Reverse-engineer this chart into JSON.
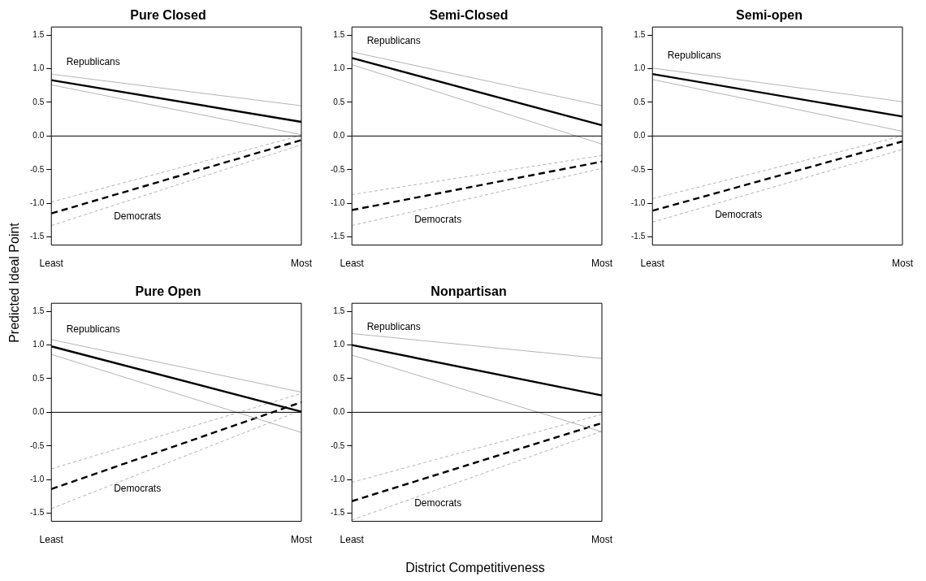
{
  "chart_data": [
    {
      "type": "line",
      "title": "Pure Closed",
      "ylabel": "Predicted Ideal Point",
      "categories": [
        "Least",
        "Most"
      ],
      "ylim": [
        -1.62,
        1.62
      ],
      "yticks": [
        -1.5,
        {
          "value": -1,
          "label": "-1.0"
        },
        -0.5,
        {
          "value": 0,
          "label": "0.0"
        },
        0.5,
        {
          "value": 1,
          "label": "1.0"
        },
        1.5
      ],
      "legend": false,
      "grid": false,
      "ref_lines": [
        {
          "axis": "y",
          "value": 0,
          "color": "#000000"
        }
      ],
      "series": [
        {
          "color": "#b4b4b4",
          "line_style": "solid",
          "values": [
            0.92,
            0.45
          ]
        },
        {
          "color": "#b4b4b4",
          "line_style": "solid",
          "values": [
            0.76,
            0.02
          ]
        },
        {
          "name": "Republicans",
          "color": "#000000",
          "line_style": "solid",
          "values": [
            0.83,
            0.21
          ]
        },
        {
          "color": "#b4b4b4",
          "line_style": "dashed",
          "values": [
            -0.98,
            0.01
          ]
        },
        {
          "color": "#b4b4b4",
          "line_style": "dashed",
          "values": [
            -1.33,
            -0.13
          ]
        },
        {
          "name": "Democrats",
          "color": "#000000",
          "line_style": "dashed",
          "values": [
            -1.15,
            -0.06
          ]
        }
      ]
    },
    {
      "type": "line",
      "title": "Semi-Closed",
      "categories": [
        "Least",
        "Most"
      ],
      "ylim": [
        -1.62,
        1.62
      ],
      "yticks": [
        -1.5,
        {
          "value": -1,
          "label": "-1.0"
        },
        -0.5,
        {
          "value": 0,
          "label": "0.0"
        },
        0.5,
        {
          "value": 1,
          "label": "1.0"
        },
        1.5
      ],
      "legend": false,
      "grid": false,
      "ref_lines": [
        {
          "axis": "y",
          "value": 0,
          "color": "#000000"
        }
      ],
      "series": [
        {
          "color": "#b4b4b4",
          "line_style": "solid",
          "values": [
            1.25,
            0.45
          ]
        },
        {
          "color": "#b4b4b4",
          "line_style": "solid",
          "values": [
            1.06,
            -0.12
          ]
        },
        {
          "name": "Republicans",
          "color": "#000000",
          "line_style": "solid",
          "values": [
            1.16,
            0.16
          ]
        },
        {
          "color": "#b4b4b4",
          "line_style": "dashed",
          "values": [
            -0.87,
            -0.29
          ]
        },
        {
          "color": "#b4b4b4",
          "line_style": "dashed",
          "values": [
            -1.33,
            -0.48
          ]
        },
        {
          "name": "Democrats",
          "color": "#000000",
          "line_style": "dashed",
          "values": [
            -1.1,
            -0.38
          ]
        }
      ]
    },
    {
      "type": "line",
      "title": "Semi-open",
      "categories": [
        "Least",
        "Most"
      ],
      "ylim": [
        -1.62,
        1.62
      ],
      "yticks": [
        -1.5,
        {
          "value": -1,
          "label": "-1.0"
        },
        -0.5,
        {
          "value": 0,
          "label": "0.0"
        },
        0.5,
        {
          "value": 1,
          "label": "1.0"
        },
        1.5
      ],
      "legend": false,
      "grid": false,
      "ref_lines": [
        {
          "axis": "y",
          "value": 0,
          "color": "#000000"
        }
      ],
      "series": [
        {
          "color": "#b4b4b4",
          "line_style": "solid",
          "values": [
            1.01,
            0.51
          ]
        },
        {
          "color": "#b4b4b4",
          "line_style": "solid",
          "values": [
            0.84,
            0.07
          ]
        },
        {
          "name": "Republicans",
          "color": "#000000",
          "line_style": "solid",
          "values": [
            0.92,
            0.29
          ]
        },
        {
          "color": "#b4b4b4",
          "line_style": "dashed",
          "values": [
            -0.93,
            0
          ]
        },
        {
          "color": "#b4b4b4",
          "line_style": "dashed",
          "values": [
            -1.28,
            -0.2
          ]
        },
        {
          "name": "Democrats",
          "color": "#000000",
          "line_style": "dashed",
          "values": [
            -1.11,
            -0.08
          ]
        }
      ]
    },
    {
      "type": "line",
      "title": "Pure Open",
      "categories": [
        "Least",
        "Most"
      ],
      "ylim": [
        -1.62,
        1.62
      ],
      "yticks": [
        -1.5,
        {
          "value": -1,
          "label": "-1.0"
        },
        -0.5,
        {
          "value": 0,
          "label": "0.0"
        },
        0.5,
        {
          "value": 1,
          "label": "1.0"
        },
        1.5
      ],
      "legend": false,
      "grid": false,
      "ref_lines": [
        {
          "axis": "y",
          "value": 0,
          "color": "#000000"
        }
      ],
      "series": [
        {
          "color": "#b4b4b4",
          "line_style": "solid",
          "values": [
            1.08,
            0.3
          ]
        },
        {
          "color": "#b4b4b4",
          "line_style": "solid",
          "values": [
            0.86,
            -0.3
          ]
        },
        {
          "name": "Republicans",
          "color": "#000000",
          "line_style": "solid",
          "values": [
            0.98,
            0.01
          ]
        },
        {
          "color": "#b4b4b4",
          "line_style": "dashed",
          "values": [
            -0.84,
            0.28
          ]
        },
        {
          "color": "#b4b4b4",
          "line_style": "dashed",
          "values": [
            -1.43,
            0.03
          ]
        },
        {
          "name": "Democrats",
          "color": "#000000",
          "line_style": "dashed",
          "values": [
            -1.14,
            0.15
          ]
        }
      ]
    },
    {
      "type": "line",
      "title": "Nonpartisan",
      "xlabel": "District Competitiveness",
      "categories": [
        "Least",
        "Most"
      ],
      "ylim": [
        -1.62,
        1.62
      ],
      "yticks": [
        -1.5,
        {
          "value": -1,
          "label": "-1.0"
        },
        -0.5,
        {
          "value": 0,
          "label": "0.0"
        },
        0.5,
        {
          "value": 1,
          "label": "1.0"
        },
        1.5
      ],
      "legend": false,
      "grid": false,
      "ref_lines": [
        {
          "axis": "y",
          "value": 0,
          "color": "#000000"
        }
      ],
      "series": [
        {
          "color": "#b4b4b4",
          "line_style": "solid",
          "values": [
            1.17,
            0.8
          ]
        },
        {
          "color": "#b4b4b4",
          "line_style": "solid",
          "values": [
            0.85,
            -0.29
          ]
        },
        {
          "name": "Republicans",
          "color": "#000000",
          "line_style": "solid",
          "values": [
            1.0,
            0.25
          ]
        },
        {
          "color": "#b4b4b4",
          "line_style": "dashed",
          "values": [
            -1.04,
            -0.03
          ]
        },
        {
          "color": "#b4b4b4",
          "line_style": "dashed",
          "values": [
            -1.6,
            -0.28
          ]
        },
        {
          "name": "Democrats",
          "color": "#000000",
          "line_style": "dashed",
          "values": [
            -1.32,
            -0.16
          ]
        }
      ]
    }
  ]
}
